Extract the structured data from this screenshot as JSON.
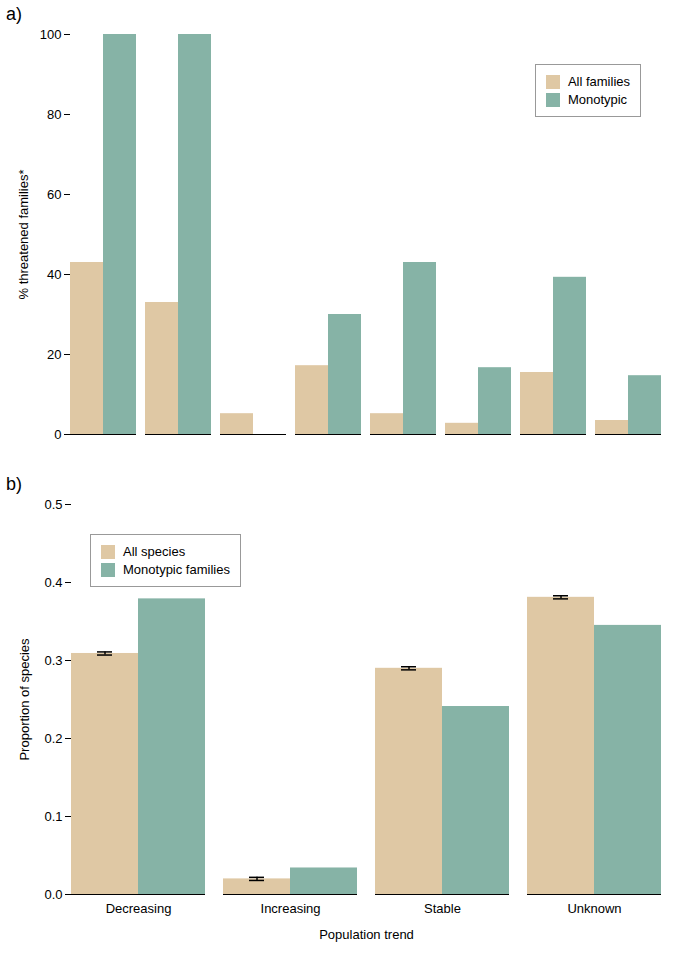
{
  "chart_data": [
    {
      "type": "bar",
      "title": "a)",
      "categories": [
        null,
        null,
        null,
        null,
        null,
        null,
        null,
        null
      ],
      "series": [
        {
          "name": "All families",
          "color": "#dfc8a4",
          "values": [
            43,
            33,
            5.2,
            17.2,
            5.2,
            2.8,
            15.5,
            3.5
          ]
        },
        {
          "name": "Monotypic",
          "color": "#86b3a6",
          "values": [
            100,
            100,
            0,
            30,
            43,
            16.7,
            39.3,
            14.7
          ]
        }
      ],
      "ylabel": "% threatened families*",
      "ylim": [
        0,
        100
      ],
      "yticks": [
        0,
        20,
        40,
        60,
        80,
        100
      ],
      "legend": "top-right"
    },
    {
      "type": "bar",
      "title": "b)",
      "categories": [
        "Decreasing",
        "Increasing",
        "Stable",
        "Unknown"
      ],
      "series": [
        {
          "name": "All species",
          "color": "#dfc8a4",
          "values": [
            0.309,
            0.02,
            0.29,
            0.381
          ],
          "errors": [
            0.002,
            0.002,
            0.002,
            0.002
          ]
        },
        {
          "name": "Monotypic families",
          "color": "#86b3a6",
          "values": [
            0.379,
            0.034,
            0.241,
            0.345
          ]
        }
      ],
      "xlabel": "Population trend",
      "ylabel": "Proportion of species",
      "ylim": [
        0,
        0.5
      ],
      "yticks": [
        {
          "value": 0,
          "label": "0.0"
        },
        0.1,
        0.2,
        0.3,
        0.4,
        0.5
      ],
      "legend": "top-left"
    }
  ]
}
